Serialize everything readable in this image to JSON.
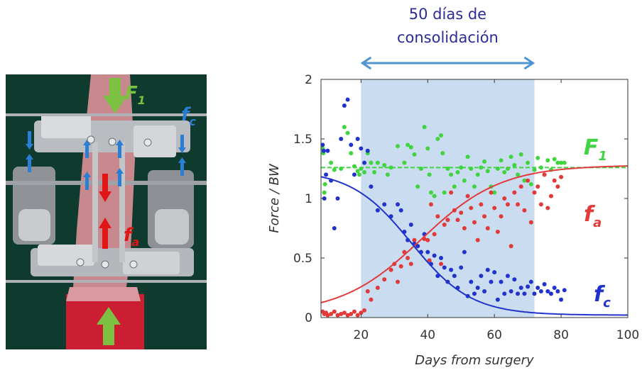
{
  "photo": {
    "labels": {
      "F1": "F",
      "F1_sub": "1",
      "fc": "f",
      "fc_sub": "c",
      "fa": "f",
      "fa_sub": "a"
    },
    "colors": {
      "green": "#7cc142",
      "blue": "#2a7fd4",
      "red": "#e01616"
    }
  },
  "chart_data": {
    "type": "scatter",
    "title_line1": "50 días de",
    "title_line2": "consolidación",
    "xlabel": "Days from surgery",
    "ylabel": "Force / BW",
    "xlim": [
      8,
      100
    ],
    "ylim": [
      0,
      2
    ],
    "xticks": [
      "20",
      "40",
      "60",
      "80",
      "100"
    ],
    "yticks": [
      "0",
      "0.5",
      "1",
      "1.5",
      "2"
    ],
    "shaded_region": {
      "x_start": 20,
      "x_end": 72,
      "color": "#c9dcf0"
    },
    "arrow_color": "#4f95d3",
    "colors": {
      "F1": "#41d441",
      "fa": "#e23a3a",
      "fc": "#2233cc",
      "text_title": "#2b2b9a"
    },
    "series": [
      {
        "name": "F1",
        "label": "F",
        "sub": "1",
        "points": [
          [
            8.5,
            1.42
          ],
          [
            8.7,
            1.38
          ],
          [
            9,
            1.05
          ],
          [
            9.2,
            1.12
          ],
          [
            11,
            1.3
          ],
          [
            12,
            1.24
          ],
          [
            14,
            1.25
          ],
          [
            15,
            1.6
          ],
          [
            16,
            1.55
          ],
          [
            17,
            1.38
          ],
          [
            18,
            1.27
          ],
          [
            19,
            1.23
          ],
          [
            19.5,
            1.2
          ],
          [
            20,
            1.25
          ],
          [
            21,
            1.22
          ],
          [
            22,
            1.38
          ],
          [
            23,
            1.3
          ],
          [
            24,
            1.22
          ],
          [
            25,
            1.3
          ],
          [
            27,
            1.28
          ],
          [
            28,
            1.2
          ],
          [
            29,
            1.26
          ],
          [
            31,
            1.44
          ],
          [
            33,
            1.3
          ],
          [
            34,
            1.45
          ],
          [
            35,
            1.43
          ],
          [
            36,
            1.37
          ],
          [
            37,
            1.1
          ],
          [
            38,
            1.25
          ],
          [
            39,
            1.6
          ],
          [
            40,
            1.42
          ],
          [
            40.5,
            1.2
          ],
          [
            41,
            1.05
          ],
          [
            42,
            1.02
          ],
          [
            43,
            1.5
          ],
          [
            44,
            1.53
          ],
          [
            44.5,
            1.38
          ],
          [
            45,
            1.05
          ],
          [
            46,
            1.25
          ],
          [
            47,
            1.2
          ],
          [
            48,
            1.1
          ],
          [
            49,
            1.22
          ],
          [
            50,
            1.26
          ],
          [
            51,
            1.15
          ],
          [
            52,
            1.35
          ],
          [
            53,
            1.25
          ],
          [
            54,
            1.1
          ],
          [
            55,
            1.2
          ],
          [
            56,
            1.26
          ],
          [
            57,
            1.31
          ],
          [
            58,
            1.23
          ],
          [
            59,
            1.1
          ],
          [
            60,
            1.05
          ],
          [
            61,
            1.25
          ],
          [
            62,
            1.32
          ],
          [
            63,
            1.22
          ],
          [
            64,
            1.25
          ],
          [
            65,
            1.35
          ],
          [
            66,
            1.28
          ],
          [
            67,
            1.2
          ],
          [
            68,
            1.37
          ],
          [
            69,
            1.15
          ],
          [
            70,
            1.3
          ],
          [
            71,
            1.12
          ],
          [
            72,
            1.24
          ],
          [
            73,
            1.34
          ],
          [
            74,
            1.26
          ],
          [
            75,
            1.2
          ],
          [
            76,
            1.32
          ],
          [
            77,
            1.24
          ],
          [
            78,
            1.33
          ],
          [
            79,
            1.3
          ],
          [
            80,
            1.3
          ],
          [
            81,
            1.3
          ]
        ]
      },
      {
        "name": "fa",
        "label": "f",
        "sub": "a",
        "points": [
          [
            8.5,
            0.05
          ],
          [
            9,
            0.03
          ],
          [
            9.5,
            0.04
          ],
          [
            10,
            0.02
          ],
          [
            11,
            0.03
          ],
          [
            12,
            0.05
          ],
          [
            13,
            0.02
          ],
          [
            14,
            0.03
          ],
          [
            15,
            0.04
          ],
          [
            16,
            0.02
          ],
          [
            17,
            0.03
          ],
          [
            18,
            0.05
          ],
          [
            19,
            0.02
          ],
          [
            20,
            0.04
          ],
          [
            21,
            0.06
          ],
          [
            22,
            0.22
          ],
          [
            23,
            0.15
          ],
          [
            25,
            0.25
          ],
          [
            27,
            0.32
          ],
          [
            29,
            0.4
          ],
          [
            30,
            0.45
          ],
          [
            31,
            0.3
          ],
          [
            32,
            0.43
          ],
          [
            33,
            0.55
          ],
          [
            34,
            0.5
          ],
          [
            35,
            0.45
          ],
          [
            36,
            0.65
          ],
          [
            37,
            0.6
          ],
          [
            38,
            0.55
          ],
          [
            39,
            0.66
          ],
          [
            40,
            0.65
          ],
          [
            40.5,
            0.48
          ],
          [
            41,
            0.95
          ],
          [
            42,
            0.7
          ],
          [
            43,
            0.85
          ],
          [
            44,
            0.45
          ],
          [
            45,
            0.78
          ],
          [
            46,
            0.82
          ],
          [
            47,
            1.05
          ],
          [
            48,
            0.9
          ],
          [
            49,
            0.82
          ],
          [
            50,
            0.88
          ],
          [
            51,
            0.75
          ],
          [
            52,
            1.02
          ],
          [
            53,
            0.92
          ],
          [
            54,
            0.8
          ],
          [
            55,
            0.65
          ],
          [
            56,
            0.95
          ],
          [
            57,
            0.85
          ],
          [
            58,
            0.75
          ],
          [
            59,
            1.05
          ],
          [
            60,
            0.92
          ],
          [
            61,
            0.72
          ],
          [
            62,
            0.85
          ],
          [
            63,
            1.0
          ],
          [
            64,
            0.95
          ],
          [
            65,
            0.6
          ],
          [
            66,
            1.05
          ],
          [
            67,
            0.95
          ],
          [
            68,
            1.1
          ],
          [
            69,
            0.9
          ],
          [
            70,
            1.15
          ],
          [
            71,
            0.8
          ],
          [
            72,
            1.05
          ],
          [
            73,
            1.1
          ],
          [
            74,
            0.95
          ],
          [
            75,
            1.2
          ],
          [
            76,
            0.92
          ],
          [
            77,
            1.02
          ],
          [
            78,
            1.15
          ],
          [
            79,
            1.1
          ],
          [
            80,
            1.18
          ]
        ]
      },
      {
        "name": "fc",
        "label": "f",
        "sub": "c",
        "points": [
          [
            8.5,
            1.45
          ],
          [
            8.8,
            1.4
          ],
          [
            9,
            1.0
          ],
          [
            9.5,
            1.2
          ],
          [
            10,
            1.4
          ],
          [
            11,
            1.15
          ],
          [
            12,
            0.75
          ],
          [
            13,
            1.0
          ],
          [
            14,
            1.5
          ],
          [
            15,
            1.78
          ],
          [
            16,
            1.83
          ],
          [
            17,
            1.45
          ],
          [
            18,
            1.2
          ],
          [
            19,
            1.5
          ],
          [
            20,
            1.42
          ],
          [
            21,
            1.3
          ],
          [
            22,
            1.4
          ],
          [
            23,
            1.1
          ],
          [
            25,
            0.9
          ],
          [
            27,
            0.95
          ],
          [
            29,
            0.85
          ],
          [
            31,
            0.95
          ],
          [
            32,
            0.9
          ],
          [
            33,
            0.72
          ],
          [
            34,
            0.65
          ],
          [
            35,
            0.78
          ],
          [
            36,
            0.62
          ],
          [
            37,
            0.6
          ],
          [
            38,
            0.55
          ],
          [
            39,
            0.7
          ],
          [
            40,
            0.55
          ],
          [
            41,
            0.45
          ],
          [
            42,
            0.52
          ],
          [
            43,
            0.35
          ],
          [
            44,
            0.5
          ],
          [
            45,
            0.42
          ],
          [
            46,
            0.3
          ],
          [
            47,
            0.4
          ],
          [
            48,
            0.35
          ],
          [
            49,
            0.25
          ],
          [
            50,
            0.42
          ],
          [
            51,
            0.55
          ],
          [
            52,
            0.18
          ],
          [
            53,
            0.3
          ],
          [
            54,
            0.2
          ],
          [
            55,
            0.25
          ],
          [
            56,
            0.35
          ],
          [
            57,
            0.22
          ],
          [
            58,
            0.4
          ],
          [
            59,
            0.3
          ],
          [
            60,
            0.38
          ],
          [
            61,
            0.15
          ],
          [
            62,
            0.3
          ],
          [
            63,
            0.2
          ],
          [
            64,
            0.35
          ],
          [
            65,
            0.22
          ],
          [
            66,
            0.32
          ],
          [
            67,
            0.2
          ],
          [
            68,
            0.25
          ],
          [
            69,
            0.2
          ],
          [
            70,
            0.26
          ],
          [
            71,
            0.3
          ],
          [
            72,
            0.2
          ],
          [
            73,
            0.25
          ],
          [
            74,
            0.22
          ],
          [
            75,
            0.28
          ],
          [
            76,
            0.22
          ],
          [
            77,
            0.2
          ],
          [
            78,
            0.25
          ],
          [
            79,
            0.22
          ],
          [
            80,
            0.15
          ],
          [
            81,
            0.23
          ]
        ]
      }
    ],
    "fits": {
      "F1": {
        "type": "constant",
        "value": 1.26
      },
      "fa": {
        "type": "sigmoid",
        "low": 0.03,
        "high": 1.28,
        "mid": 38,
        "scale": 12
      },
      "fc": {
        "type": "sigmoid",
        "low": 0.02,
        "high": 1.24,
        "mid": 35,
        "scale": 9
      }
    }
  }
}
